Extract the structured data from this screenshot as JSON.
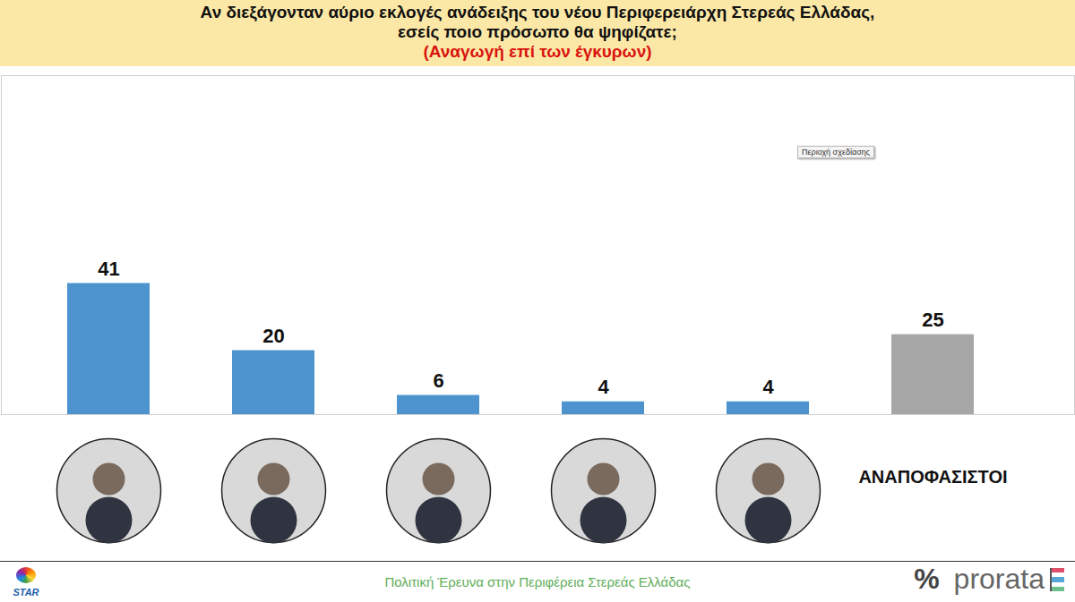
{
  "chart_data": {
    "type": "bar",
    "title": "Αν διεξάγονταν αύριο εκλογές ανάδειξης του νέου Περιφερειάρχη Στερεάς Ελλάδας,\nεσείς ποιο πρόσωπο θα ψηφίζατε;",
    "subtitle": "(Αναγωγή επί των έγκυρων)",
    "caption": "Πολιτική Έρευνα στην Περιφέρεια Στερεάς Ελλάδας",
    "annotations": [
      "Περιοχή σχεδίασης"
    ],
    "logo_left": "STAR",
    "logo_right": [
      "%",
      "prorata"
    ],
    "categories": [
      null,
      null,
      null,
      null,
      null,
      "ΑΝΑΠΟΦΑΣΙΣΤΟΙ"
    ],
    "values": [
      41,
      20,
      6,
      4,
      4,
      25
    ],
    "colors": [
      "#4d94ce",
      "#4d94ce",
      "#4d94ce",
      "#4d94ce",
      "#4d94ce",
      "#a6a6a6"
    ],
    "ylim": [
      0,
      106
    ],
    "yticks": [],
    "data_labels": true,
    "tick_labels": "x",
    "grid": false
  }
}
